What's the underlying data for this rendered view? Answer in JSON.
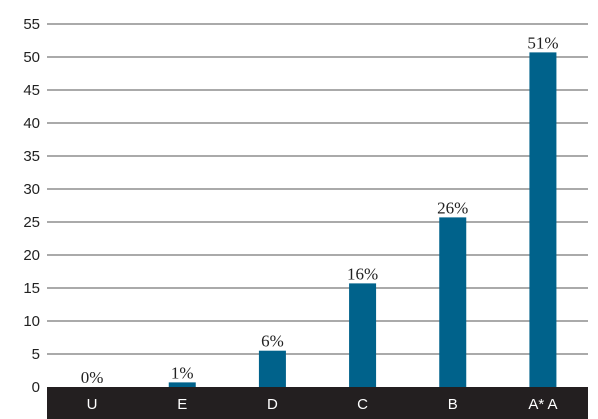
{
  "chart_data": {
    "type": "bar",
    "title": "",
    "xlabel": "",
    "ylabel": "",
    "categories": [
      "U",
      "E",
      "D",
      "C",
      "B",
      "A* A"
    ],
    "values": [
      0,
      0.7,
      5.5,
      15.7,
      25.7,
      50.7
    ],
    "data_labels": [
      "0%",
      "1%",
      "6%",
      "16%",
      "26%",
      "51%"
    ],
    "ylim": [
      0,
      55
    ],
    "yticks": [
      0,
      5,
      10,
      15,
      20,
      25,
      30,
      35,
      40,
      45,
      50,
      55
    ],
    "grid": true,
    "legend": "none",
    "colors": {
      "bar": "#00628b",
      "category_band": "#231f20",
      "grid": "#555555"
    }
  }
}
